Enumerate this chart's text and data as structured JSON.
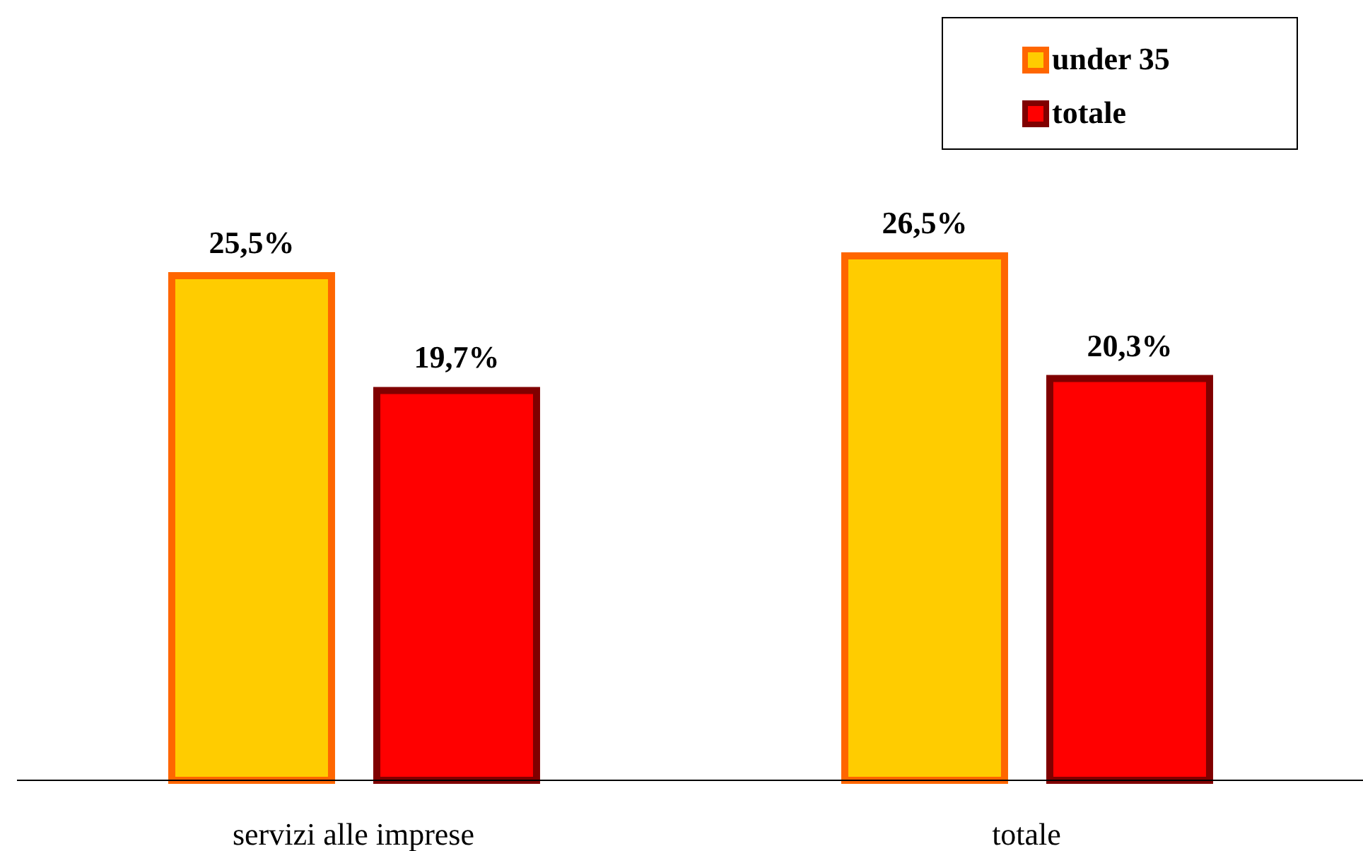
{
  "chart_data": {
    "type": "bar",
    "categories": [
      "servizi alle imprese",
      "totale"
    ],
    "series": [
      {
        "name": "under 35",
        "color": "#ffcc00",
        "values": [
          25.5,
          26.5
        ],
        "value_labels": [
          "25,5%",
          "26,5%"
        ]
      },
      {
        "name": "totale",
        "color": "#ff0000",
        "values": [
          19.7,
          20.3
        ],
        "value_labels": [
          "19,7%",
          "20,3%"
        ]
      }
    ],
    "legend": "top right"
  }
}
